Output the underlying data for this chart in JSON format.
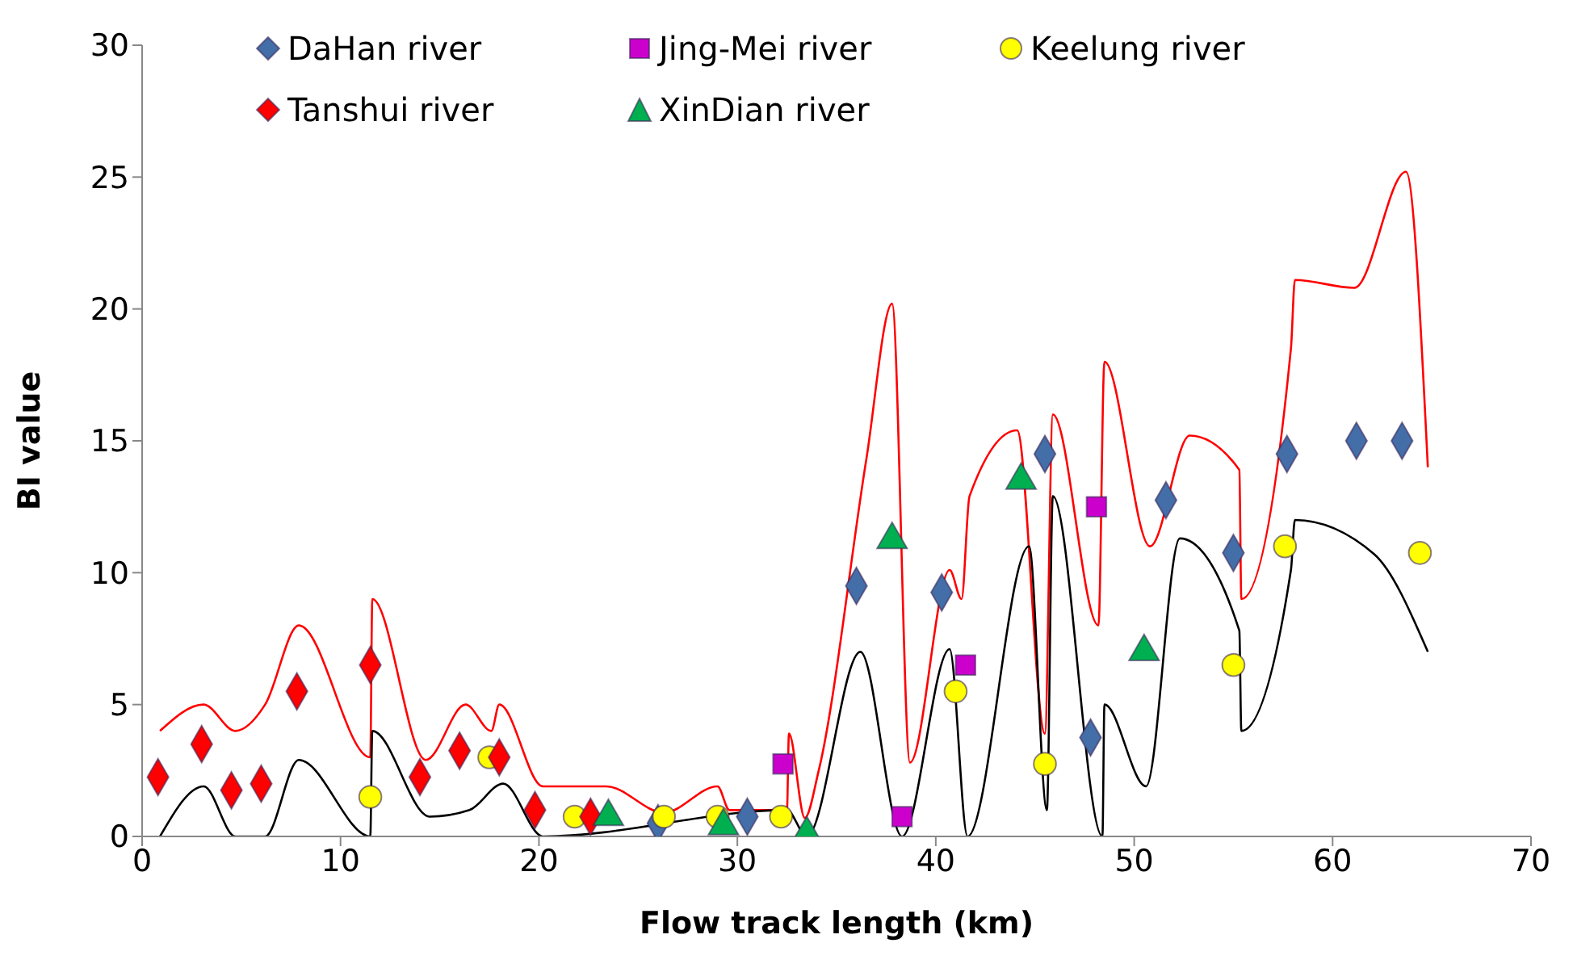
{
  "chart_data": {
    "type": "scatter",
    "xlabel": "Flow track length  (km)",
    "ylabel": "BI value",
    "xlim": [
      0,
      70
    ],
    "xticks": [
      0,
      10,
      20,
      30,
      40,
      50,
      60,
      70
    ],
    "ylim": [
      0,
      30
    ],
    "yticks": [
      0,
      5,
      10,
      15,
      20,
      25,
      30
    ],
    "grid": false,
    "legend": "top",
    "series": [
      {
        "name": "DaHan river",
        "color": "#436ea8",
        "marker": "diamond",
        "x": [
          26,
          29.5,
          30.5,
          36,
          40.3,
          45.5,
          47.8,
          51.6,
          55,
          57.7,
          61.2,
          63.5
        ],
        "values": [
          0.5,
          null,
          0.75,
          9.5,
          9.25,
          14.5,
          3.75,
          12.75,
          10.75,
          14.5,
          15,
          15
        ]
      },
      {
        "name": "Jing-Mei river",
        "color": "#cc00cc",
        "marker": "square",
        "x": [
          32.3,
          38.3,
          41.5,
          48.1
        ],
        "values": [
          2.75,
          0.75,
          6.5,
          12.5
        ]
      },
      {
        "name": "Keelung river",
        "color": "#ffff00",
        "marker": "circle",
        "x": [
          11.5,
          17.5,
          21.8,
          26.3,
          29,
          32.2,
          41,
          45.5,
          55,
          57.6,
          64.4
        ],
        "values": [
          1.5,
          3,
          0.75,
          0.75,
          0.75,
          0.75,
          5.5,
          2.75,
          6.5,
          11,
          10.75
        ]
      },
      {
        "name": "Tanshui river",
        "color": "#ff0000",
        "marker": "diamond",
        "x": [
          0.8,
          3,
          4.5,
          6,
          7.8,
          11.5,
          14,
          16,
          18,
          19.8,
          22.6
        ],
        "values": [
          2.25,
          3.5,
          1.75,
          2,
          5.5,
          6.5,
          2.25,
          3.25,
          3,
          1,
          0.75
        ]
      },
      {
        "name": "XinDian river",
        "color": "#00b050",
        "marker": "triangle",
        "x": [
          23.5,
          29.3,
          33.5,
          37.8,
          44.3,
          50.5
        ],
        "values": [
          0.75,
          0.4,
          0.1,
          11.25,
          13.5,
          7
        ]
      },
      {
        "type": "line",
        "color": "#ff0000",
        "marker": "none",
        "x": [
          0.9,
          3.1,
          4.7,
          6.2,
          7.9,
          11.5,
          11.6,
          14.3,
          16.3,
          17.6,
          18,
          20.2,
          22.3,
          23.4,
          26.3,
          29,
          29.6,
          32.5,
          32.6,
          33.4,
          34.1,
          36.5,
          37.8,
          38.7,
          40.7,
          41.3,
          41.7,
          44.1,
          45.5,
          45.9,
          48.2,
          48.5,
          50.8,
          52.8,
          55.3,
          55.4,
          57.9,
          58.1,
          61.1,
          63.7,
          64.8
        ],
        "values": [
          4,
          5,
          4,
          5,
          8,
          3,
          9,
          2.9,
          5,
          4,
          5,
          1.9,
          1.9,
          1.9,
          0.9,
          1.9,
          1,
          1,
          3.9,
          0.7,
          2.5,
          14.3,
          20.2,
          2.8,
          10.1,
          9,
          12.9,
          15.4,
          3.9,
          16,
          8,
          18,
          11,
          15.2,
          13.9,
          9,
          18.5,
          21.1,
          20.8,
          25.2,
          14
        ]
      },
      {
        "type": "line",
        "color": "#000000",
        "marker": "none",
        "x": [
          0.9,
          3.1,
          4.7,
          6.2,
          7.9,
          11.5,
          11.6,
          14.5,
          16.5,
          18.2,
          20.2,
          32.5,
          33.5,
          36.2,
          38.3,
          40.7,
          41.6,
          44.7,
          45.6,
          45.9,
          48.4,
          48.5,
          50.6,
          52.3,
          55.3,
          55.4,
          57.9,
          58.1,
          62.1,
          64.8
        ],
        "values": [
          0,
          1.9,
          0,
          0,
          2.9,
          0,
          4,
          0.75,
          1,
          2,
          0,
          1,
          0,
          7,
          0,
          7.1,
          0,
          11,
          1,
          12.9,
          0,
          5,
          1.9,
          11.3,
          7.8,
          4,
          10.1,
          12,
          10.7,
          7
        ]
      }
    ]
  }
}
